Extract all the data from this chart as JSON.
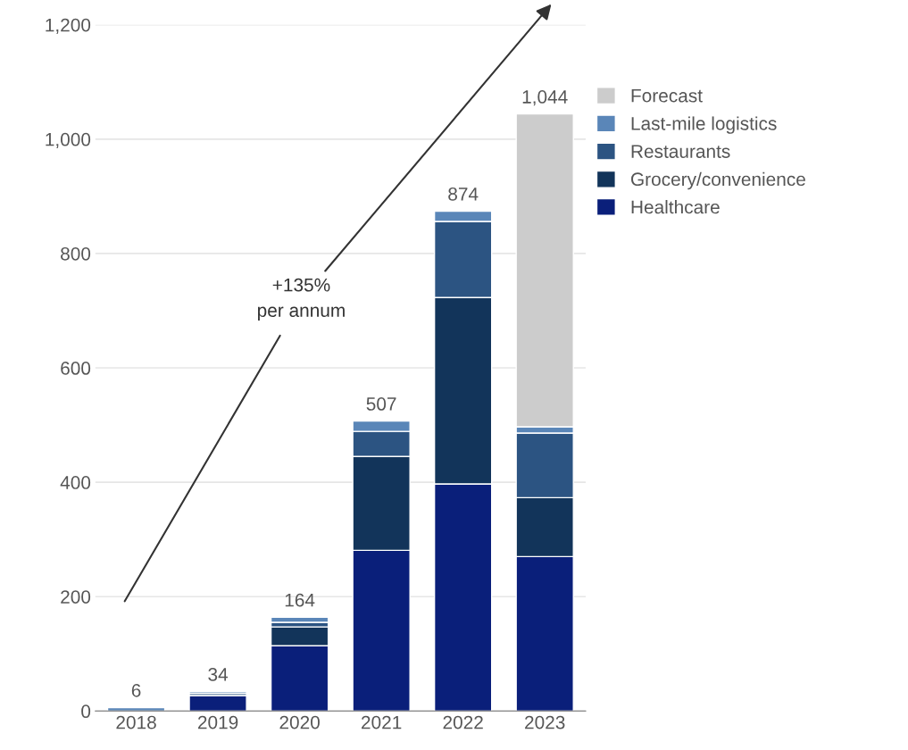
{
  "chart_data": {
    "type": "bar",
    "stacked": true,
    "categories": [
      "2018",
      "2019",
      "2020",
      "2021",
      "2022",
      "2023"
    ],
    "series": [
      {
        "name": "Healthcare",
        "color": "#0a1f7a",
        "values": [
          null,
          27,
          114,
          281,
          397,
          270
        ]
      },
      {
        "name": "Grocery/convenience",
        "color": "#12345a",
        "values": [
          null,
          null,
          33,
          164,
          326,
          103
        ]
      },
      {
        "name": "Restaurants",
        "color": "#2c5482",
        "values": [
          null,
          4,
          8,
          44,
          133,
          113
        ]
      },
      {
        "name": "Last-mile logistics",
        "color": "#5a86b8",
        "values": [
          6,
          3,
          9,
          18,
          18,
          11
        ]
      },
      {
        "name": "Forecast",
        "color": "#cccccc",
        "values": [
          null,
          null,
          null,
          null,
          null,
          547
        ]
      }
    ],
    "totals": [
      "6",
      "34",
      "164",
      "507",
      "874",
      "1,044"
    ],
    "ylim": [
      0,
      1200
    ],
    "yticks": [
      0,
      {
        "value": 200,
        "label": "200"
      },
      {
        "value": 400,
        "label": "400"
      },
      {
        "value": 600,
        "label": "600"
      },
      {
        "value": 800,
        "label": "800"
      },
      {
        "value": 1000,
        "label": "1,000"
      },
      {
        "value": 1200,
        "label": "1,200"
      }
    ],
    "grid": "y",
    "legend": "top right",
    "annotations": [
      "+135%\nper annum"
    ]
  }
}
